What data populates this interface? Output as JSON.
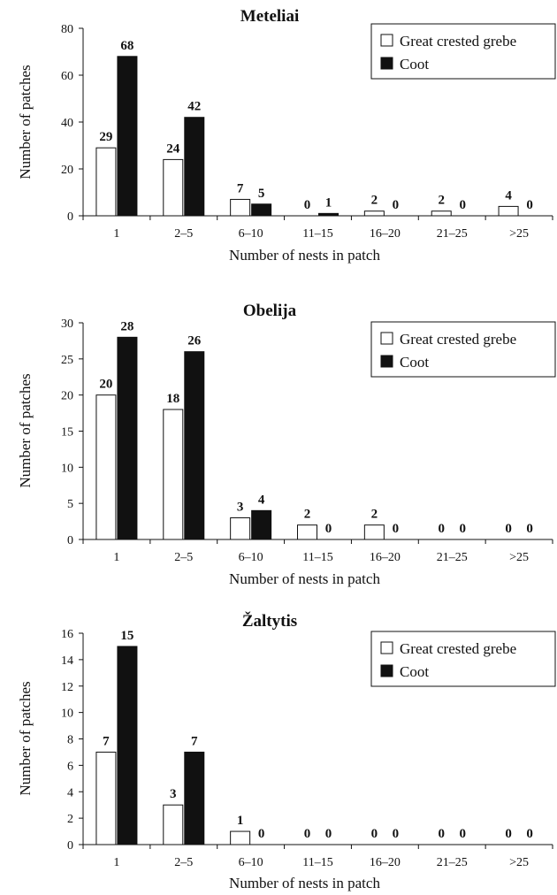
{
  "chart_data": [
    {
      "type": "bar",
      "title": "Meteliai",
      "xlabel": "Number of nests in patch",
      "ylabel": "Number of patches",
      "categories": [
        "1",
        "2–5",
        "6–10",
        "11–15",
        "16–20",
        "21–25",
        ">25"
      ],
      "ylim": [
        0,
        80
      ],
      "yticks": [
        0,
        20,
        40,
        60,
        80
      ],
      "legend_position": "top-right",
      "series": [
        {
          "name": "Great crested grebe",
          "color": "#ffffff",
          "values": [
            29,
            24,
            7,
            0,
            2,
            2,
            4
          ]
        },
        {
          "name": "Coot",
          "color": "#111111",
          "values": [
            68,
            42,
            5,
            1,
            0,
            0,
            0
          ]
        }
      ]
    },
    {
      "type": "bar",
      "title": "Obelija",
      "xlabel": "Number of nests in patch",
      "ylabel": "Number of patches",
      "categories": [
        "1",
        "2–5",
        "6–10",
        "11–15",
        "16–20",
        "21–25",
        ">25"
      ],
      "ylim": [
        0,
        30
      ],
      "yticks": [
        0,
        5,
        10,
        15,
        20,
        25,
        30
      ],
      "legend_position": "top-right",
      "series": [
        {
          "name": "Great crested grebe",
          "color": "#ffffff",
          "values": [
            20,
            18,
            3,
            2,
            2,
            0,
            0
          ]
        },
        {
          "name": "Coot",
          "color": "#111111",
          "values": [
            28,
            26,
            4,
            0,
            0,
            0,
            0
          ]
        }
      ]
    },
    {
      "type": "bar",
      "title": "Žaltytis",
      "xlabel": "Number of nests in patch",
      "ylabel": "Number of patches",
      "categories": [
        "1",
        "2–5",
        "6–10",
        "11–15",
        "16–20",
        "21–25",
        ">25"
      ],
      "ylim": [
        0,
        16
      ],
      "yticks": [
        0,
        2,
        4,
        6,
        8,
        10,
        12,
        14,
        16
      ],
      "legend_position": "top-right",
      "series": [
        {
          "name": "Great crested grebe",
          "color": "#ffffff",
          "values": [
            7,
            3,
            1,
            0,
            0,
            0,
            0
          ]
        },
        {
          "name": "Coot",
          "color": "#111111",
          "values": [
            15,
            7,
            0,
            0,
            0,
            0,
            0
          ]
        }
      ]
    }
  ]
}
